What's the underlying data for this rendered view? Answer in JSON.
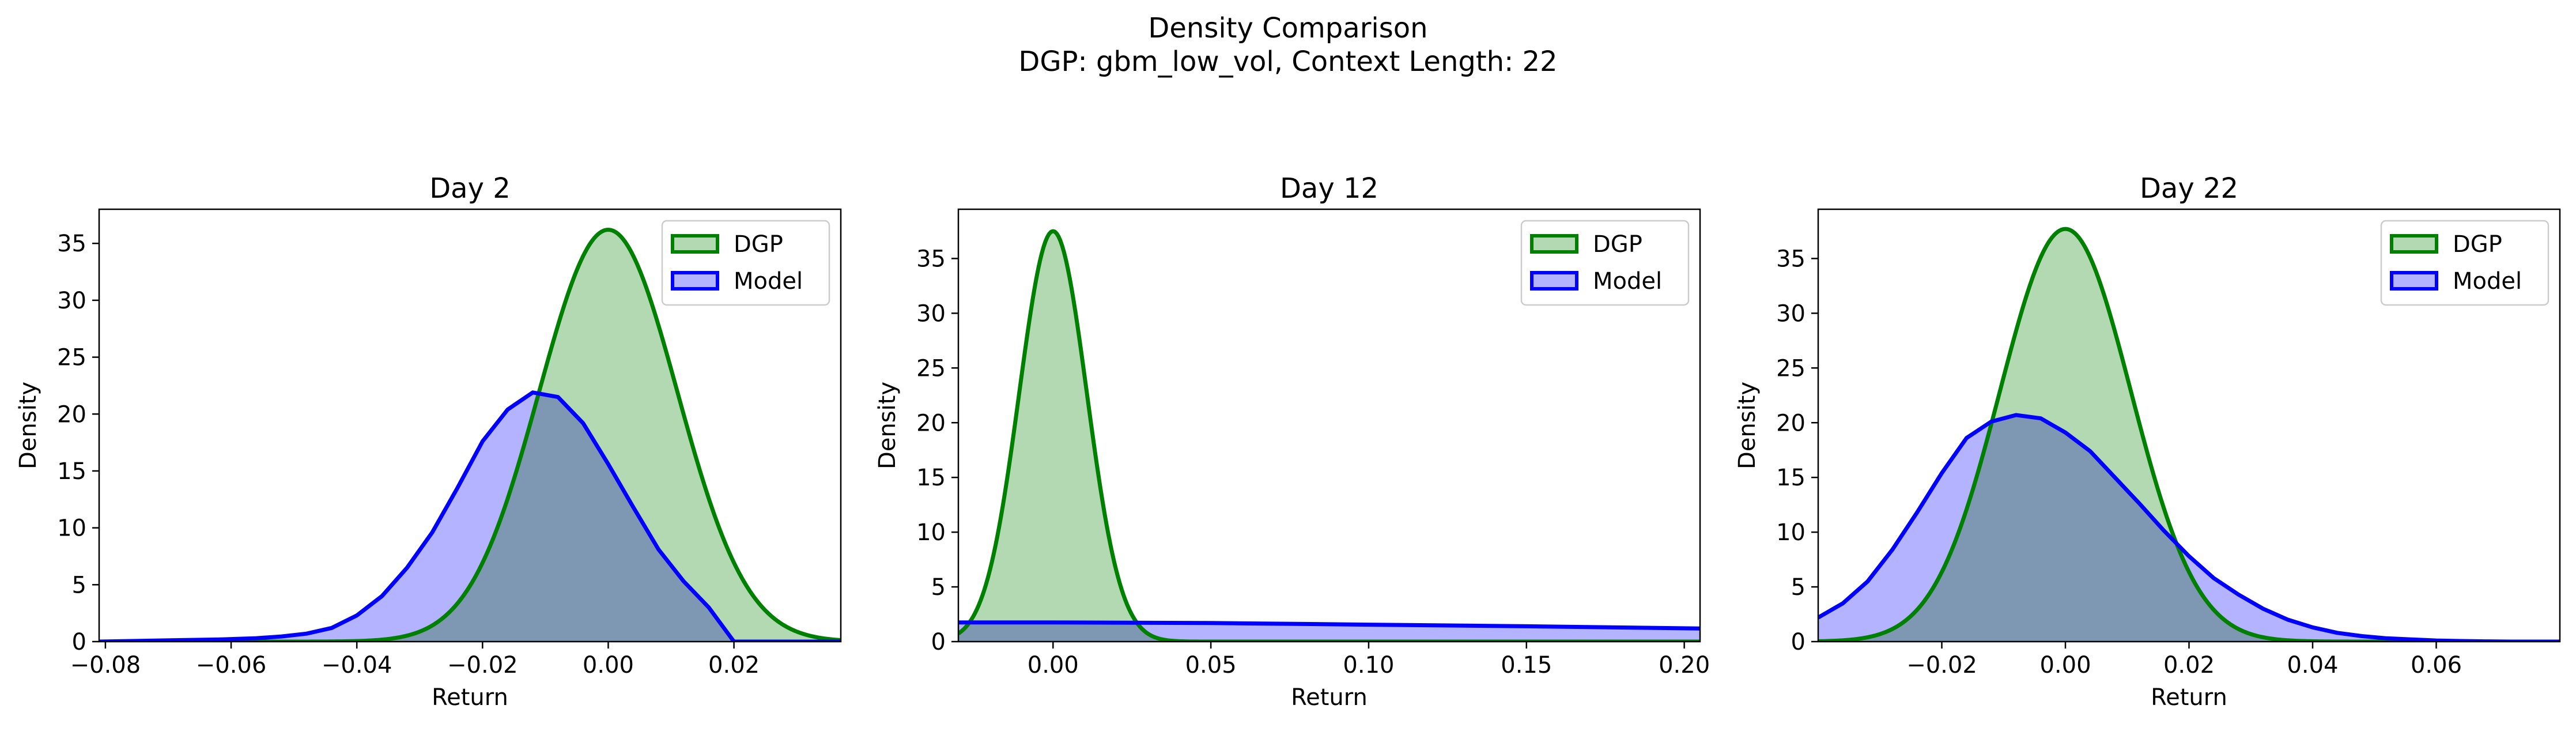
{
  "figure": {
    "title_line1": "Density Comparison",
    "title_line2": "DGP: gbm_low_vol, Context Length: 22"
  },
  "colors": {
    "dgp_line": "#008000",
    "dgp_fill": "#b3d9b3",
    "model_line": "#0000ff",
    "model_fill": "#b3b3ff",
    "overlap_fill": "#7f99c8"
  },
  "chart_data": [
    {
      "type": "area",
      "title": "Day 2",
      "xlabel": "Return",
      "ylabel": "Density",
      "xlim": [
        -0.081,
        0.037
      ],
      "ylim": [
        0,
        38
      ],
      "xticks": [
        -0.08,
        -0.06,
        -0.04,
        -0.02,
        0.0,
        0.02
      ],
      "xtick_labels": [
        "−0.08",
        "−0.06",
        "−0.04",
        "−0.02",
        "0.00",
        "0.02"
      ],
      "yticks": [
        0,
        5,
        10,
        15,
        20,
        25,
        30,
        35
      ],
      "ytick_labels": [
        "0",
        "5",
        "10",
        "15",
        "20",
        "25",
        "30",
        "35"
      ],
      "legend": "top-right",
      "grid": false,
      "series": [
        {
          "name": "DGP",
          "kind": "gaussian",
          "mu": 0.0,
          "sigma": 0.011,
          "peak": 36.2,
          "x_range": [
            -0.081,
            0.037
          ]
        },
        {
          "name": "Model",
          "kind": "points",
          "x": [
            -0.081,
            -0.071,
            -0.061,
            -0.056,
            -0.052,
            -0.048,
            -0.044,
            -0.04,
            -0.036,
            -0.032,
            -0.028,
            -0.024,
            -0.02,
            -0.016,
            -0.012,
            -0.008,
            -0.004,
            0.0,
            0.004,
            0.008,
            0.012,
            0.016,
            0.02,
            0.024,
            0.028,
            0.032,
            0.037
          ],
          "y": [
            0.0,
            0.1,
            0.2,
            0.3,
            0.45,
            0.7,
            1.2,
            2.3,
            4.0,
            6.5,
            9.6,
            13.5,
            17.6,
            20.4,
            21.9,
            21.5,
            19.2,
            15.6,
            11.8,
            8.1,
            5.3,
            3.0,
            0.0,
            0.0,
            0.0,
            0.0,
            0.0
          ]
        }
      ]
    },
    {
      "type": "area",
      "title": "Day 12",
      "xlabel": "Return",
      "ylabel": "Density",
      "xlim": [
        -0.03,
        0.205
      ],
      "ylim": [
        0,
        39.5
      ],
      "xticks": [
        0.0,
        0.05,
        0.1,
        0.15,
        0.2
      ],
      "xtick_labels": [
        "0.00",
        "0.05",
        "0.10",
        "0.15",
        "0.20"
      ],
      "yticks": [
        0,
        5,
        10,
        15,
        20,
        25,
        30,
        35
      ],
      "ytick_labels": [
        "0",
        "5",
        "10",
        "15",
        "20",
        "25",
        "30",
        "35"
      ],
      "legend": "top-right",
      "grid": false,
      "series": [
        {
          "name": "DGP",
          "kind": "gaussian",
          "mu": 0.0,
          "sigma": 0.0107,
          "peak": 37.5,
          "x_range": [
            -0.03,
            0.205
          ]
        },
        {
          "name": "Model",
          "kind": "points",
          "x": [
            -0.03,
            0.0,
            0.05,
            0.1,
            0.15,
            0.205
          ],
          "y": [
            1.75,
            1.75,
            1.7,
            1.55,
            1.4,
            1.2
          ]
        }
      ]
    },
    {
      "type": "area",
      "title": "Day 22",
      "xlabel": "Return",
      "ylabel": "Density",
      "xlim": [
        -0.04,
        0.08
      ],
      "ylim": [
        0,
        39.5
      ],
      "xticks": [
        -0.02,
        0.0,
        0.02,
        0.04,
        0.06
      ],
      "xtick_labels": [
        "−0.02",
        "0.00",
        "0.02",
        "0.04",
        "0.06"
      ],
      "yticks": [
        0,
        5,
        10,
        15,
        20,
        25,
        30,
        35
      ],
      "ytick_labels": [
        "0",
        "5",
        "10",
        "15",
        "20",
        "25",
        "30",
        "35"
      ],
      "legend": "top-right",
      "grid": false,
      "series": [
        {
          "name": "DGP",
          "kind": "gaussian",
          "mu": 0.0,
          "sigma": 0.0106,
          "peak": 37.7,
          "x_range": [
            -0.04,
            0.08
          ]
        },
        {
          "name": "Model",
          "kind": "points",
          "x": [
            -0.04,
            -0.036,
            -0.032,
            -0.028,
            -0.024,
            -0.02,
            -0.016,
            -0.012,
            -0.008,
            -0.004,
            0.0,
            0.004,
            0.008,
            0.012,
            0.016,
            0.02,
            0.024,
            0.028,
            0.032,
            0.036,
            0.04,
            0.044,
            0.048,
            0.052,
            0.056,
            0.06,
            0.064,
            0.068,
            0.072,
            0.076,
            0.08
          ],
          "y": [
            2.2,
            3.5,
            5.5,
            8.4,
            11.8,
            15.4,
            18.6,
            20.1,
            20.7,
            20.4,
            19.1,
            17.4,
            15.0,
            12.6,
            10.1,
            7.8,
            5.8,
            4.3,
            3.0,
            2.0,
            1.3,
            0.8,
            0.5,
            0.3,
            0.2,
            0.1,
            0.05,
            0.02,
            0.0,
            0.0,
            0.0
          ]
        }
      ]
    }
  ]
}
